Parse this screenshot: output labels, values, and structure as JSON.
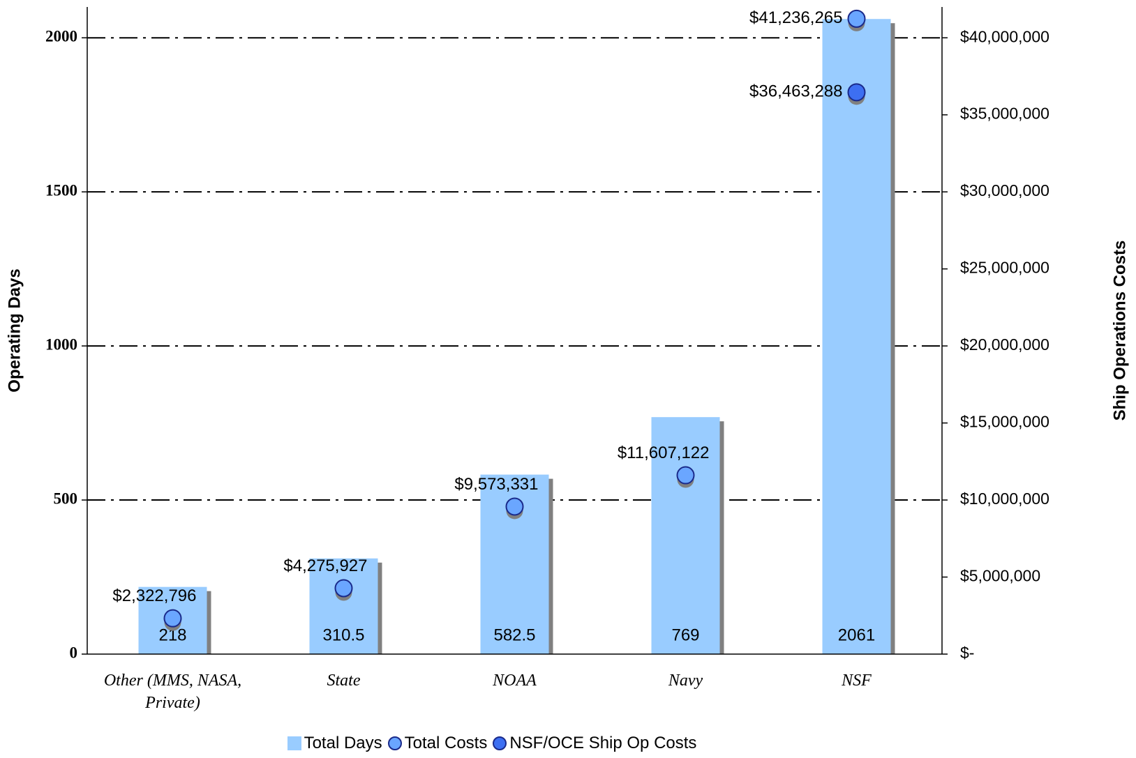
{
  "chart_data": {
    "type": "bar",
    "categories": [
      "Other (MMS, NASA, Private)",
      "State",
      "NOAA",
      "Navy",
      "NSF"
    ],
    "series": [
      {
        "name": "Total Days",
        "color": "#99ccff",
        "values": [
          218,
          310.5,
          582.5,
          769,
          2061
        ]
      },
      {
        "name": "Total Costs",
        "color": "#6aa6ff",
        "axis": "y2",
        "values": [
          2322796,
          4275927,
          9573331,
          11607122,
          41236265
        ],
        "value_labels": [
          "$2,322,796",
          "$4,275,927",
          "$9,573,331",
          "$11,607,122",
          "$41,236,265"
        ]
      },
      {
        "name": "NSF/OCE Ship Op Costs",
        "color": "#3d6ff2",
        "axis": "y2",
        "values": [
          null,
          null,
          null,
          null,
          36463288
        ],
        "value_labels": [
          null,
          null,
          null,
          null,
          "$36,463,288"
        ]
      }
    ],
    "y_label": "Operating Days",
    "y2_label": "Ship Operations Costs",
    "ylim": [
      0,
      2100
    ],
    "yticks": [
      0,
      500,
      1000,
      1500,
      2000
    ],
    "y2lim": [
      0,
      42000000
    ],
    "y2ticks": [
      {
        "value": 0,
        "label": "$-"
      },
      {
        "value": 5000000,
        "label": "$5,000,000"
      },
      {
        "value": 10000000,
        "label": "$10,000,000"
      },
      {
        "value": 15000000,
        "label": "$15,000,000"
      },
      {
        "value": 20000000,
        "label": "$20,000,000"
      },
      {
        "value": 25000000,
        "label": "$25,000,000"
      },
      {
        "value": 30000000,
        "label": "$30,000,000"
      },
      {
        "value": 35000000,
        "label": "$35,000,000"
      },
      {
        "value": 40000000,
        "label": "$40,000,000"
      }
    ],
    "grid": true,
    "legend": "bottom"
  }
}
